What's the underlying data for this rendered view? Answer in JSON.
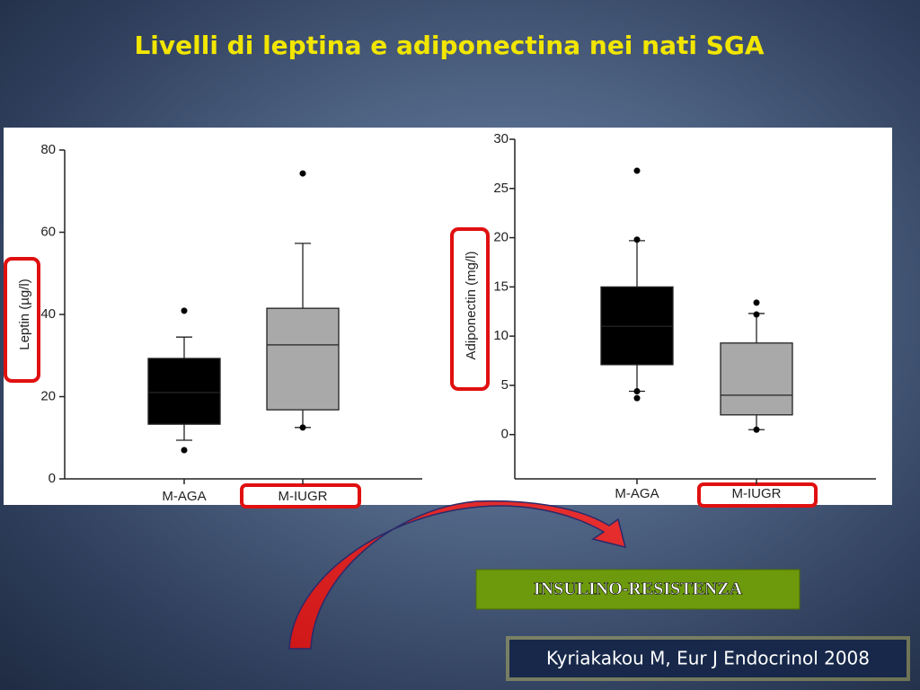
{
  "slide": {
    "title": "Livelli di leptina e adiponectina nei nati SGA",
    "highlight": "INSULINO-RESISTENZA",
    "citation": "Kyriakakou M, Eur J Endocrinol 2008"
  },
  "chart_data": [
    {
      "type": "box",
      "y_label": "Leptin (µg/l)",
      "categories": [
        "M-AGA",
        "M-IUGR"
      ],
      "colors": [
        "#000000",
        "#a9a9a9"
      ],
      "boxes": [
        {
          "min": 9.4,
          "q1": 13.3,
          "median": 21,
          "q3": 29.3,
          "max": 34.5,
          "outliers": [
            40.9,
            7.0
          ]
        },
        {
          "min": 12.5,
          "q1": 16.8,
          "median": 32.6,
          "q3": 41.5,
          "max": 57.3,
          "outliers": [
            74.3,
            12.5
          ]
        }
      ],
      "ylim": [
        0,
        80
      ],
      "yticks": [
        0,
        20,
        40,
        60,
        80
      ]
    },
    {
      "type": "box",
      "y_label": "Adiponectin (mg/l)",
      "categories": [
        "M-AGA",
        "M-IUGR"
      ],
      "colors": [
        "#000000",
        "#a9a9a9"
      ],
      "boxes": [
        {
          "min": 4.4,
          "q1": 7.1,
          "median": 11,
          "q3": 15.0,
          "max": 19.7,
          "outliers": [
            26.8,
            19.8,
            4.4,
            3.7
          ]
        },
        {
          "min": 0.5,
          "q1": 2.0,
          "median": 4.0,
          "q3": 9.3,
          "max": 12.3,
          "outliers": [
            13.4,
            12.2,
            0.5
          ]
        }
      ],
      "ylim": [
        -4.5,
        30
      ],
      "yticks": [
        0,
        5,
        10,
        15,
        20,
        25,
        30
      ]
    }
  ]
}
